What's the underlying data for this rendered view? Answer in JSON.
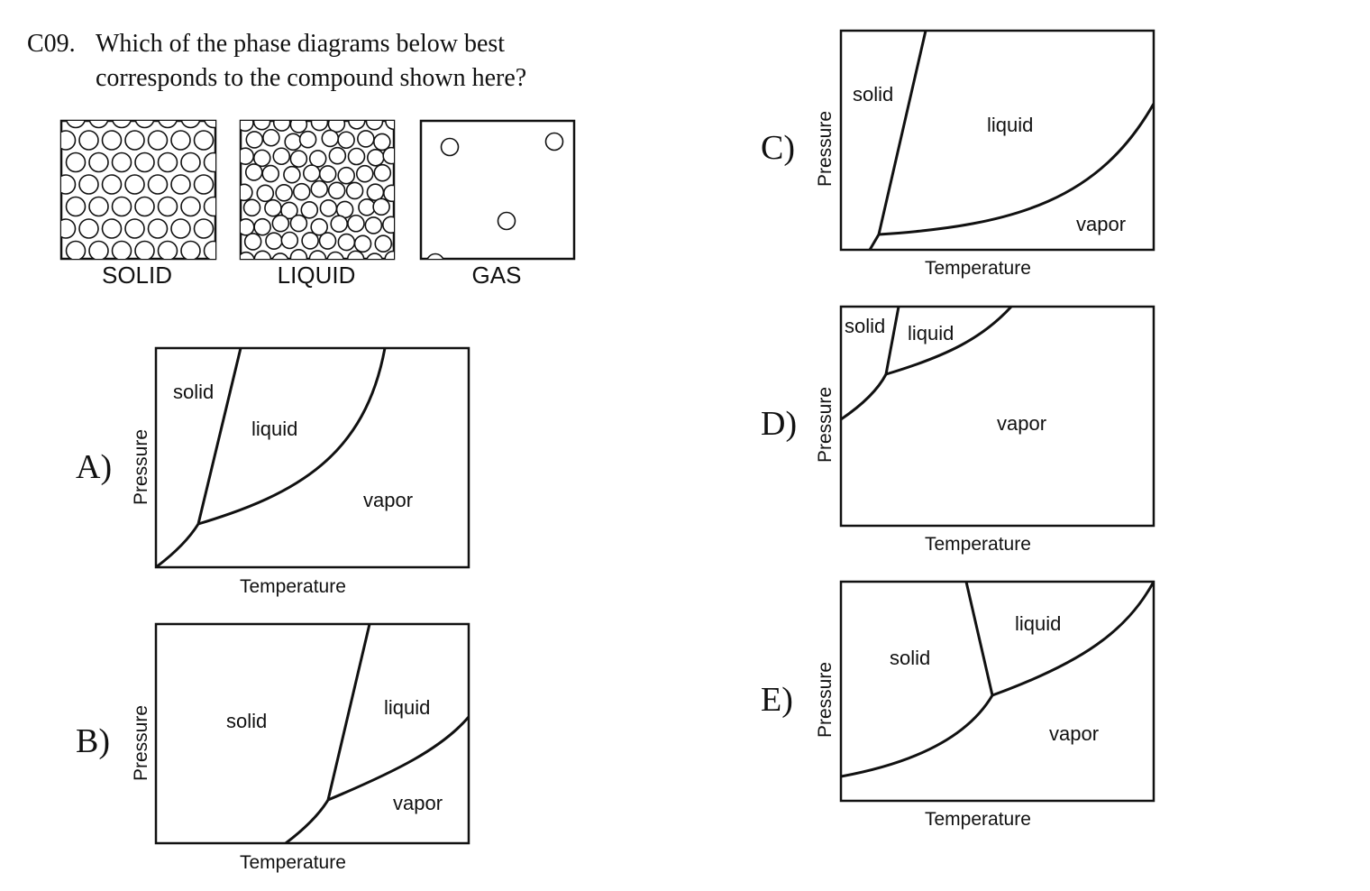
{
  "question": {
    "number": "C09.",
    "line1": "Which of the phase diagrams below best",
    "line2": "corresponds to the compound shown here?"
  },
  "states": {
    "solid": "SOLID",
    "liquid": "LIQUID",
    "gas": "GAS"
  },
  "axes": {
    "x": "Temperature",
    "y": "Pressure"
  },
  "options": [
    {
      "label": "A)",
      "regions": {
        "solid": "solid",
        "liquid": "liquid",
        "vapor": "vapor"
      }
    },
    {
      "label": "B)",
      "regions": {
        "solid": "solid",
        "liquid": "liquid",
        "vapor": "vapor"
      }
    },
    {
      "label": "C)",
      "regions": {
        "solid": "solid",
        "liquid": "liquid",
        "vapor": "vapor"
      }
    },
    {
      "label": "D)",
      "regions": {
        "solid": "solid",
        "liquid": "liquid",
        "vapor": "vapor"
      }
    },
    {
      "label": "E)",
      "regions": {
        "solid": "solid",
        "liquid": "liquid",
        "vapor": "vapor"
      }
    }
  ]
}
